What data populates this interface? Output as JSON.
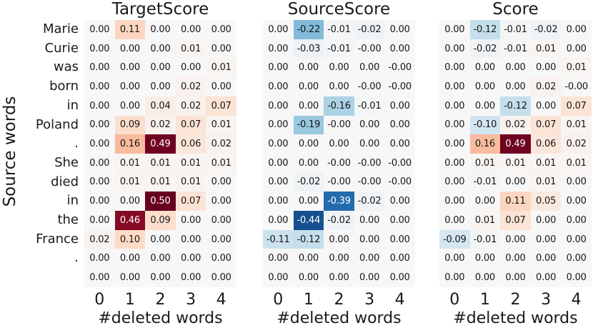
{
  "figure": {
    "ylabel": "Source words",
    "xlabel": "#deleted words",
    "x_ticks": [
      "0",
      "1",
      "2",
      "3",
      "4"
    ],
    "row_labels": [
      "Marie",
      "Curie",
      "was",
      "born",
      "in",
      "Poland",
      ".",
      "She",
      "died",
      "in",
      "the",
      "France",
      ".",
      ""
    ]
  },
  "colormap": {
    "name": "RdBu_r",
    "vmin": -0.5,
    "vmax": 0.5,
    "center_color": "#f7f7f7",
    "positive_max_color": "#67001f",
    "negative_max_color": "#053061",
    "stops": [
      "#053061",
      "#2166ac",
      "#4393c3",
      "#92c5de",
      "#d1e5f0",
      "#f7f7f7",
      "#fddbc7",
      "#f4a582",
      "#d6604d",
      "#b2182b",
      "#67001f"
    ],
    "annotation_dark_text": "#151515",
    "annotation_light_text": "#ffffff"
  },
  "chart_data": [
    {
      "type": "heatmap",
      "title": "TargetScore",
      "xlabel": "#deleted words",
      "ylabel": "Source words",
      "x": [
        "0",
        "1",
        "2",
        "3",
        "4"
      ],
      "y": [
        "Marie",
        "Curie",
        "was",
        "born",
        "in",
        "Poland",
        ".",
        "She",
        "died",
        "in",
        "the",
        "France",
        ".",
        ""
      ],
      "values": [
        [
          "0.00",
          "0.11",
          "0.00",
          "0.00",
          "0.00"
        ],
        [
          "0.00",
          "0.00",
          "0.00",
          "0.01",
          "0.00"
        ],
        [
          "0.00",
          "0.00",
          "0.00",
          "0.00",
          "0.01"
        ],
        [
          "0.00",
          "0.00",
          "0.00",
          "0.02",
          "0.00"
        ],
        [
          "0.00",
          "0.00",
          "0.04",
          "0.02",
          "0.07"
        ],
        [
          "0.00",
          "0.09",
          "0.02",
          "0.07",
          "0.01"
        ],
        [
          "0.00",
          "0.16",
          "0.49",
          "0.06",
          "0.02"
        ],
        [
          "0.00",
          "0.01",
          "0.01",
          "0.01",
          "0.01"
        ],
        [
          "0.00",
          "0.01",
          "0.01",
          "0.01",
          "0.00"
        ],
        [
          "0.00",
          "0.00",
          "0.50",
          "0.07",
          "0.00"
        ],
        [
          "0.00",
          "0.46",
          "0.09",
          "0.00",
          "0.00"
        ],
        [
          "0.02",
          "0.10",
          "0.00",
          "0.00",
          "0.00"
        ],
        [
          "0.00",
          "0.00",
          "0.00",
          "0.00",
          "0.00"
        ],
        [
          "0.00",
          "0.00",
          "0.00",
          "0.00",
          "0.00"
        ]
      ]
    },
    {
      "type": "heatmap",
      "title": "SourceScore",
      "xlabel": "#deleted words",
      "ylabel": "Source words",
      "x": [
        "0",
        "1",
        "2",
        "3",
        "4"
      ],
      "y": [
        "Marie",
        "Curie",
        "was",
        "born",
        "in",
        "Poland",
        ".",
        "She",
        "died",
        "in",
        "the",
        "France",
        ".",
        ""
      ],
      "values": [
        [
          "0.00",
          "-0.22",
          "-0.01",
          "-0.02",
          "0.00"
        ],
        [
          "0.00",
          "-0.03",
          "-0.01",
          "-0.00",
          "0.00"
        ],
        [
          "0.00",
          "0.00",
          "0.00",
          "0.00",
          "-0.00"
        ],
        [
          "0.00",
          "0.00",
          "0.00",
          "-0.00",
          "-0.00"
        ],
        [
          "0.00",
          "0.00",
          "-0.16",
          "-0.01",
          "0.00"
        ],
        [
          "0.00",
          "-0.19",
          "-0.00",
          "0.00",
          "0.00"
        ],
        [
          "0.00",
          "0.00",
          "0.00",
          "0.00",
          "0.00"
        ],
        [
          "0.00",
          "0.00",
          "-0.00",
          "-0.00",
          "-0.00"
        ],
        [
          "0.00",
          "-0.02",
          "-0.00",
          "-0.00",
          "-0.00"
        ],
        [
          "0.00",
          "0.00",
          "-0.39",
          "-0.02",
          "0.00"
        ],
        [
          "0.00",
          "-0.44",
          "-0.02",
          "0.00",
          "0.00"
        ],
        [
          "-0.11",
          "-0.12",
          "0.00",
          "0.00",
          "0.00"
        ],
        [
          "0.00",
          "0.00",
          "0.00",
          "0.00",
          "0.00"
        ],
        [
          "0.00",
          "0.00",
          "0.00",
          "0.00",
          "0.00"
        ]
      ]
    },
    {
      "type": "heatmap",
      "title": "Score",
      "xlabel": "#deleted words",
      "ylabel": "Source words",
      "x": [
        "0",
        "1",
        "2",
        "3",
        "4"
      ],
      "y": [
        "Marie",
        "Curie",
        "was",
        "born",
        "in",
        "Poland",
        ".",
        "She",
        "died",
        "in",
        "the",
        "France",
        ".",
        ""
      ],
      "values": [
        [
          "0.00",
          "-0.12",
          "-0.01",
          "-0.02",
          "0.00"
        ],
        [
          "0.00",
          "-0.02",
          "-0.01",
          "0.01",
          "0.00"
        ],
        [
          "0.00",
          "0.00",
          "0.00",
          "0.00",
          "0.01"
        ],
        [
          "0.00",
          "0.00",
          "0.00",
          "0.02",
          "-0.00"
        ],
        [
          "0.00",
          "0.00",
          "-0.12",
          "0.00",
          "0.07"
        ],
        [
          "0.00",
          "-0.10",
          "0.02",
          "0.07",
          "0.01"
        ],
        [
          "0.00",
          "0.16",
          "0.49",
          "0.06",
          "0.02"
        ],
        [
          "0.00",
          "0.01",
          "0.01",
          "0.01",
          "0.01"
        ],
        [
          "0.00",
          "-0.01",
          "0.00",
          "0.01",
          "0.00"
        ],
        [
          "0.00",
          "0.00",
          "0.11",
          "0.05",
          "0.00"
        ],
        [
          "0.00",
          "0.01",
          "0.07",
          "0.00",
          "0.00"
        ],
        [
          "-0.09",
          "-0.01",
          "0.00",
          "0.00",
          "0.00"
        ],
        [
          "0.00",
          "0.00",
          "0.00",
          "0.00",
          "0.00"
        ],
        [
          "0.00",
          "0.00",
          "0.00",
          "0.00",
          "0.00"
        ]
      ]
    }
  ]
}
